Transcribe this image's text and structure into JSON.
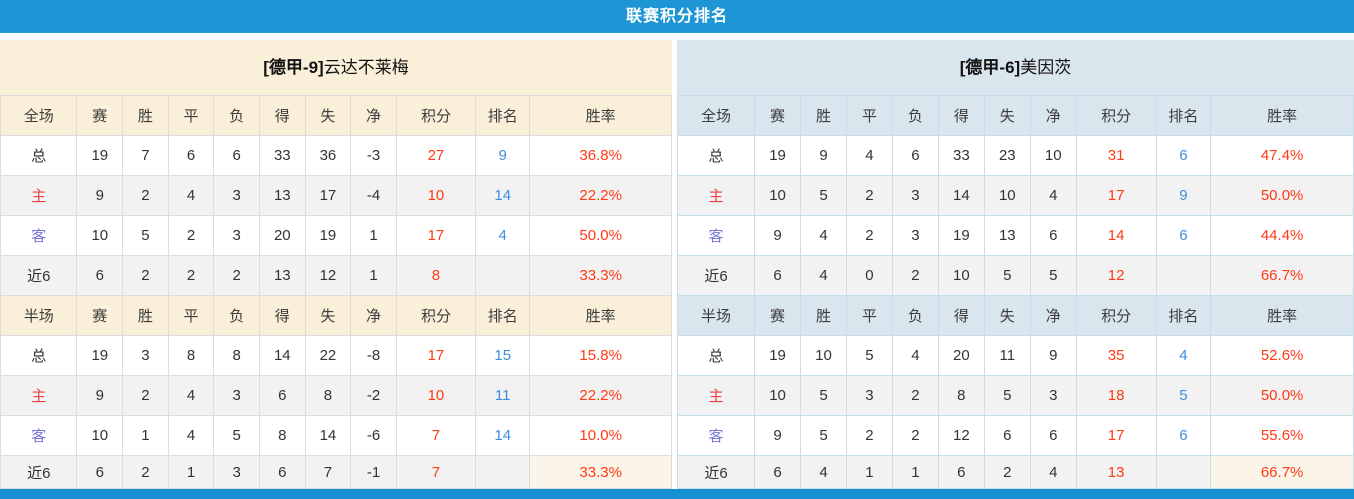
{
  "header": {
    "title": "联赛积分排名"
  },
  "stat_columns": [
    "赛",
    "胜",
    "平",
    "负",
    "得",
    "失",
    "净",
    "积分",
    "排名",
    "胜率"
  ],
  "colors": {
    "top_bar_blue": "#1E96D5",
    "left_panel_cream": "#FAF0D9",
    "right_panel_blue": "#DAE6EE",
    "points_red": "#FF3A14",
    "rank_blue": "#3E8EE0",
    "home_label_red": "#E64040",
    "away_label_blue": "#7678D4"
  },
  "teams": [
    {
      "name_prefix": "[德甲-9]",
      "name": "云达不莱梅",
      "sections": [
        {
          "scope_label": "全场",
          "rows": [
            {
              "label": "总",
              "type": "total",
              "values": [
                "19",
                "7",
                "6",
                "6",
                "33",
                "36",
                "-3"
              ],
              "points": "27",
              "rank": "9",
              "rate": "36.8%"
            },
            {
              "label": "主",
              "type": "home",
              "values": [
                "9",
                "2",
                "4",
                "3",
                "13",
                "17",
                "-4"
              ],
              "points": "10",
              "rank": "14",
              "rate": "22.2%"
            },
            {
              "label": "客",
              "type": "away",
              "values": [
                "10",
                "5",
                "2",
                "3",
                "20",
                "19",
                "1"
              ],
              "points": "17",
              "rank": "4",
              "rate": "50.0%"
            },
            {
              "label": "近6",
              "type": "last6",
              "values": [
                "6",
                "2",
                "2",
                "2",
                "13",
                "12",
                "1"
              ],
              "points": "8",
              "rank": "",
              "rate": "33.3%"
            }
          ]
        },
        {
          "scope_label": "半场",
          "rows": [
            {
              "label": "总",
              "type": "total",
              "values": [
                "19",
                "3",
                "8",
                "8",
                "14",
                "22",
                "-8"
              ],
              "points": "17",
              "rank": "15",
              "rate": "15.8%"
            },
            {
              "label": "主",
              "type": "home",
              "values": [
                "9",
                "2",
                "4",
                "3",
                "6",
                "8",
                "-2"
              ],
              "points": "10",
              "rank": "11",
              "rate": "22.2%"
            },
            {
              "label": "客",
              "type": "away",
              "values": [
                "10",
                "1",
                "4",
                "5",
                "8",
                "14",
                "-6"
              ],
              "points": "7",
              "rank": "14",
              "rate": "10.0%"
            },
            {
              "label": "近6",
              "type": "last6",
              "values": [
                "6",
                "2",
                "1",
                "3",
                "6",
                "7",
                "-1"
              ],
              "points": "7",
              "rank": "",
              "rate": "33.3%"
            }
          ]
        }
      ]
    },
    {
      "name_prefix": "[德甲-6]",
      "name": "美因茨",
      "sections": [
        {
          "scope_label": "全场",
          "rows": [
            {
              "label": "总",
              "type": "total",
              "values": [
                "19",
                "9",
                "4",
                "6",
                "33",
                "23",
                "10"
              ],
              "points": "31",
              "rank": "6",
              "rate": "47.4%"
            },
            {
              "label": "主",
              "type": "home",
              "values": [
                "10",
                "5",
                "2",
                "3",
                "14",
                "10",
                "4"
              ],
              "points": "17",
              "rank": "9",
              "rate": "50.0%"
            },
            {
              "label": "客",
              "type": "away",
              "values": [
                "9",
                "4",
                "2",
                "3",
                "19",
                "13",
                "6"
              ],
              "points": "14",
              "rank": "6",
              "rate": "44.4%"
            },
            {
              "label": "近6",
              "type": "last6",
              "values": [
                "6",
                "4",
                "0",
                "2",
                "10",
                "5",
                "5"
              ],
              "points": "12",
              "rank": "",
              "rate": "66.7%"
            }
          ]
        },
        {
          "scope_label": "半场",
          "rows": [
            {
              "label": "总",
              "type": "total",
              "values": [
                "19",
                "10",
                "5",
                "4",
                "20",
                "11",
                "9"
              ],
              "points": "35",
              "rank": "4",
              "rate": "52.6%"
            },
            {
              "label": "主",
              "type": "home",
              "values": [
                "10",
                "5",
                "3",
                "2",
                "8",
                "5",
                "3"
              ],
              "points": "18",
              "rank": "5",
              "rate": "50.0%"
            },
            {
              "label": "客",
              "type": "away",
              "values": [
                "9",
                "5",
                "2",
                "2",
                "12",
                "6",
                "6"
              ],
              "points": "17",
              "rank": "6",
              "rate": "55.6%"
            },
            {
              "label": "近6",
              "type": "last6",
              "values": [
                "6",
                "4",
                "1",
                "1",
                "6",
                "2",
                "4"
              ],
              "points": "13",
              "rank": "",
              "rate": "66.7%"
            }
          ]
        }
      ]
    }
  ]
}
